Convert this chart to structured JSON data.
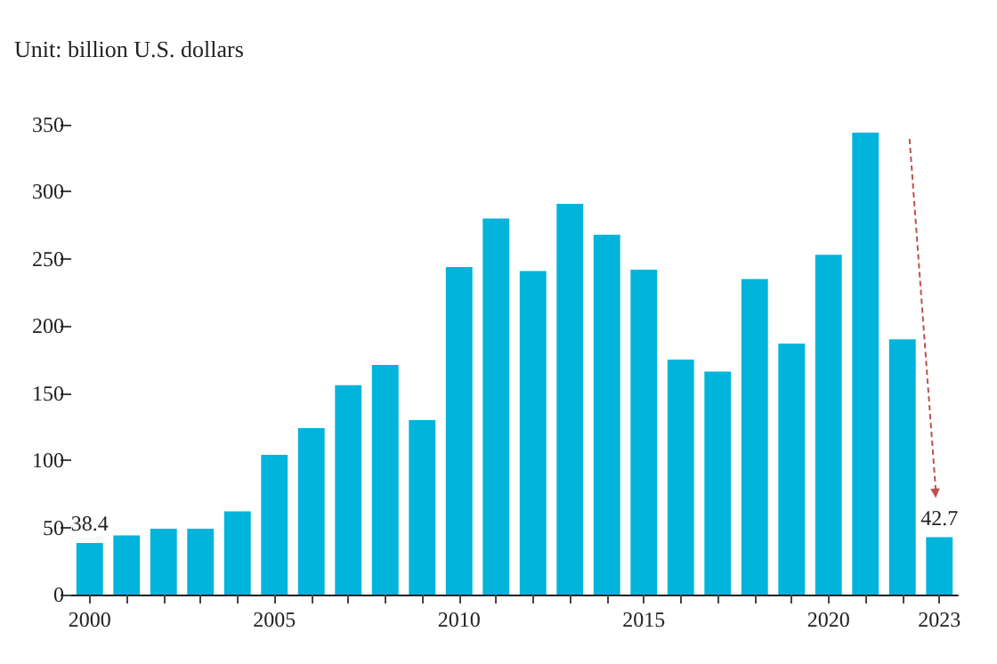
{
  "chart_data": {
    "type": "bar",
    "ylabel": "Unit: billion U.S. dollars",
    "categories": [
      "2000",
      null,
      null,
      null,
      null,
      "2005",
      null,
      null,
      null,
      null,
      "2010",
      null,
      null,
      null,
      null,
      "2015",
      null,
      null,
      null,
      null,
      "2020",
      null,
      null,
      "2023"
    ],
    "values": [
      38.4,
      44,
      49,
      49,
      62,
      104,
      124,
      156,
      171,
      130,
      244,
      280,
      241,
      291,
      268,
      242,
      175,
      166,
      235,
      187,
      253,
      344,
      190,
      42.7
    ],
    "value_labels": [
      "38.4",
      null,
      null,
      null,
      null,
      null,
      null,
      null,
      null,
      null,
      null,
      null,
      null,
      null,
      null,
      null,
      null,
      null,
      null,
      null,
      null,
      null,
      null,
      "42.7"
    ],
    "color": "#00b4dc",
    "ylim": [
      0,
      350
    ],
    "yticks": [
      0,
      50,
      100,
      150,
      200,
      250,
      300,
      350
    ],
    "grid": false
  }
}
